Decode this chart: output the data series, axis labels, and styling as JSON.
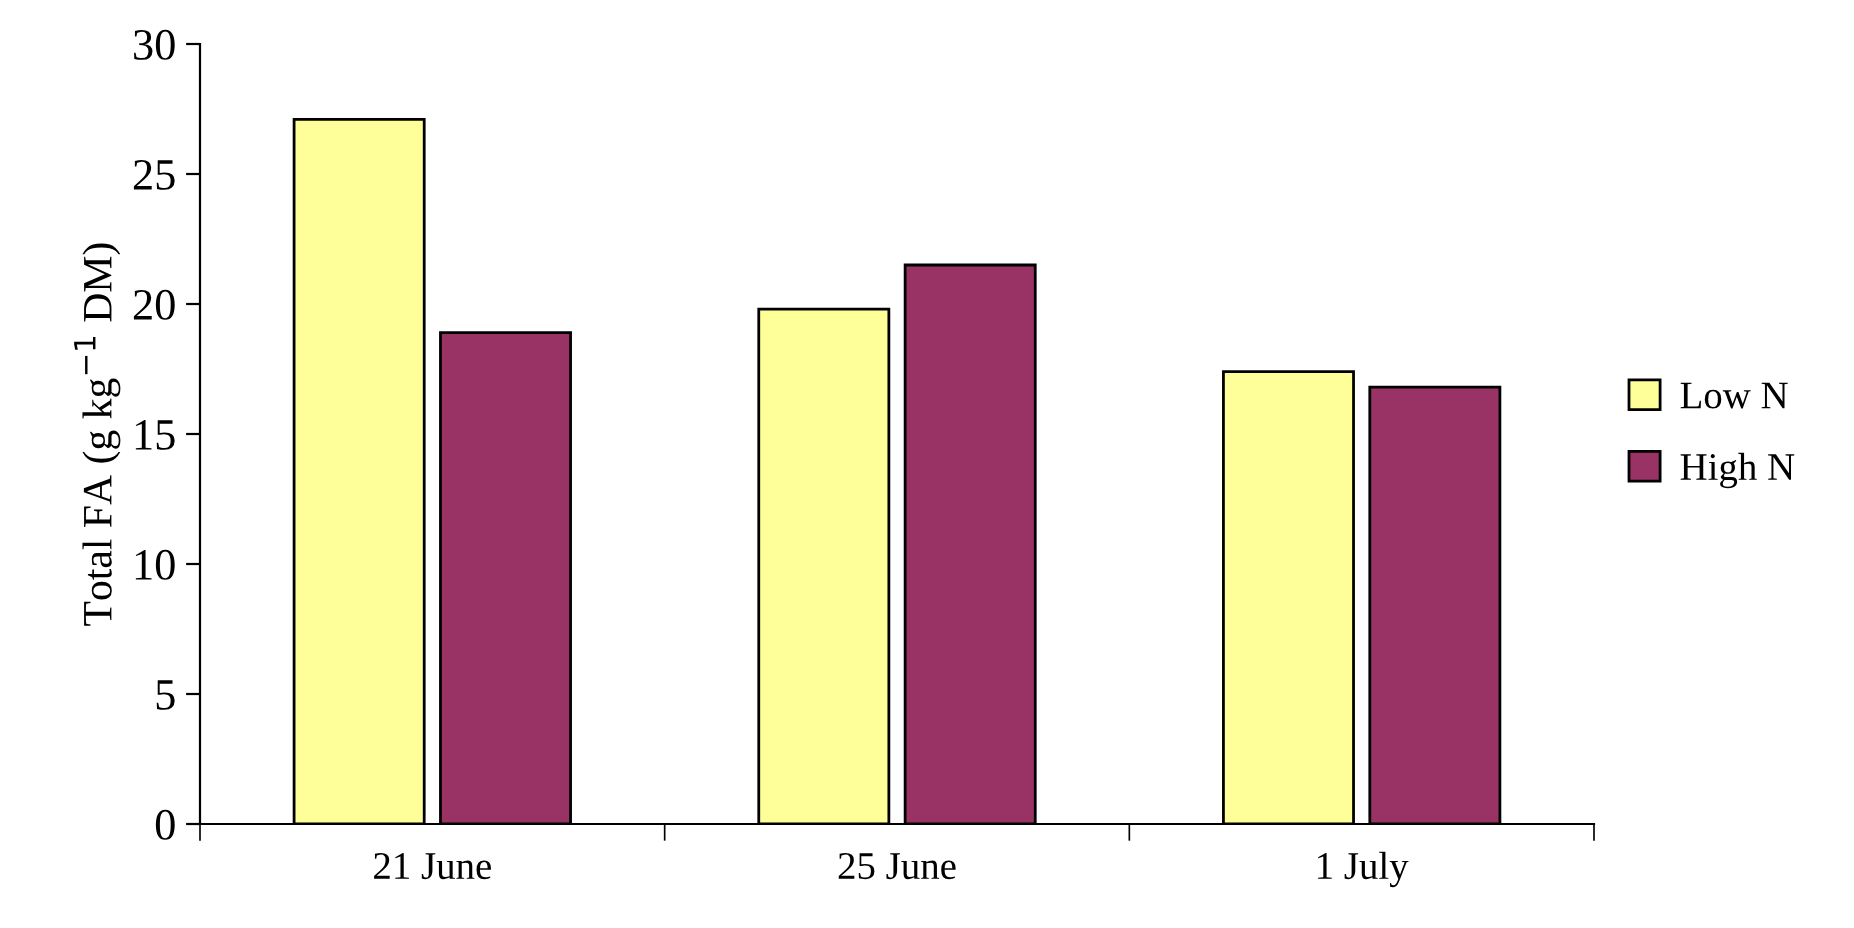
{
  "chart_data": {
    "type": "bar",
    "ylabel": "Total FA (g kg$^{−1}$ DM)",
    "categories": [
      "21 June",
      "25 June",
      "1 July"
    ],
    "series": [
      {
        "name": "Low N",
        "color": "#ffff99",
        "values": [
          27.1,
          19.8,
          17.4
        ]
      },
      {
        "name": "High N",
        "color": "#993366",
        "values": [
          18.9,
          21.5,
          16.8
        ]
      }
    ],
    "ylim": [
      0,
      30
    ],
    "yticks": [
      0,
      5,
      10,
      15,
      20,
      25,
      30
    ],
    "grid": false,
    "legend": "right"
  }
}
